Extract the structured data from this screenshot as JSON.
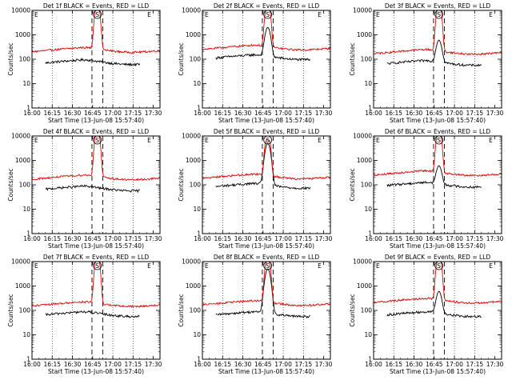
{
  "figure": {
    "ylabel": "Counts/sec",
    "xlabel": "Start Time (13-Jun-08 15:57:40)",
    "yticks": [
      "1",
      "10",
      "100",
      "1000",
      "10000"
    ],
    "xticks": [
      "16:00",
      "16:15",
      "16:30",
      "16:45",
      "17:00",
      "17:15",
      "17:30"
    ]
  },
  "colors": {
    "events": "#000000",
    "lld": "#e00000",
    "grid": "#000000"
  },
  "chart_data": [
    {
      "type": "line",
      "title": "Det 1f BLACK = Events, RED = LLD",
      "markers": [
        "S",
        "E"
      ],
      "yscale": "log",
      "ylim": [
        1,
        10000
      ],
      "xlim_min": [
        0,
        95
      ],
      "series": [
        {
          "name": "BLACK = Events",
          "baseline": 75,
          "peak": 60,
          "flare_shape": "none",
          "x_start_min": 10,
          "x_end_min": 80
        },
        {
          "name": "RED = LLD",
          "baseline": 240,
          "peak": 12000,
          "flare_shape": "broad",
          "x_start_min": 0,
          "x_end_min": 95
        }
      ]
    },
    {
      "type": "line",
      "title": "Det 2f BLACK = Events, RED = LLD",
      "markers": [
        "S",
        "E"
      ],
      "yscale": "log",
      "ylim": [
        1,
        10000
      ],
      "xlim_min": [
        0,
        95
      ],
      "series": [
        {
          "name": "BLACK = Events",
          "baseline": 120,
          "peak": 2000,
          "flare_shape": "sharp",
          "x_start_min": 10,
          "x_end_min": 80
        },
        {
          "name": "RED = LLD",
          "baseline": 300,
          "peak": 12000,
          "flare_shape": "broad",
          "x_start_min": 0,
          "x_end_min": 95
        }
      ]
    },
    {
      "type": "line",
      "title": "Det 3f BLACK = Events, RED = LLD",
      "markers": [
        "S",
        "E"
      ],
      "yscale": "log",
      "ylim": [
        1,
        10000
      ],
      "xlim_min": [
        0,
        95
      ],
      "series": [
        {
          "name": "BLACK = Events",
          "baseline": 70,
          "peak": 600,
          "flare_shape": "sharp",
          "x_start_min": 10,
          "x_end_min": 80
        },
        {
          "name": "RED = LLD",
          "baseline": 200,
          "peak": 12000,
          "flare_shape": "broad",
          "x_start_min": 0,
          "x_end_min": 95
        }
      ]
    },
    {
      "type": "line",
      "title": "Det 4f BLACK = Events, RED = LLD",
      "markers": [
        "S",
        "E"
      ],
      "yscale": "log",
      "ylim": [
        1,
        10000
      ],
      "xlim_min": [
        0,
        95
      ],
      "series": [
        {
          "name": "BLACK = Events",
          "baseline": 70,
          "peak": 60,
          "flare_shape": "none",
          "x_start_min": 10,
          "x_end_min": 80
        },
        {
          "name": "RED = LLD",
          "baseline": 200,
          "peak": 12000,
          "flare_shape": "broad",
          "x_start_min": 0,
          "x_end_min": 95
        }
      ]
    },
    {
      "type": "line",
      "title": "Det 5f BLACK = Events, RED = LLD",
      "markers": [
        "S",
        "E"
      ],
      "yscale": "log",
      "ylim": [
        1,
        10000
      ],
      "xlim_min": [
        0,
        95
      ],
      "series": [
        {
          "name": "BLACK = Events",
          "baseline": 90,
          "peak": 5000,
          "flare_shape": "sharp",
          "x_start_min": 10,
          "x_end_min": 80
        },
        {
          "name": "RED = LLD",
          "baseline": 220,
          "peak": 7000,
          "flare_shape": "broad",
          "x_start_min": 0,
          "x_end_min": 95
        }
      ]
    },
    {
      "type": "line",
      "title": "Det 6f BLACK = Events, RED = LLD",
      "markers": [
        "S",
        "E"
      ],
      "yscale": "log",
      "ylim": [
        1,
        10000
      ],
      "xlim_min": [
        0,
        95
      ],
      "series": [
        {
          "name": "BLACK = Events",
          "baseline": 100,
          "peak": 600,
          "flare_shape": "sharp",
          "x_start_min": 10,
          "x_end_min": 80
        },
        {
          "name": "RED = LLD",
          "baseline": 300,
          "peak": 12000,
          "flare_shape": "broad",
          "x_start_min": 0,
          "x_end_min": 95
        }
      ]
    },
    {
      "type": "line",
      "title": "Det 7f BLACK = Events, RED = LLD",
      "markers": [
        "S",
        "E"
      ],
      "yscale": "log",
      "ylim": [
        1,
        10000
      ],
      "xlim_min": [
        0,
        95
      ],
      "series": [
        {
          "name": "BLACK = Events",
          "baseline": 70,
          "peak": 60,
          "flare_shape": "none",
          "x_start_min": 10,
          "x_end_min": 80
        },
        {
          "name": "RED = LLD",
          "baseline": 180,
          "peak": 12000,
          "flare_shape": "broad",
          "x_start_min": 0,
          "x_end_min": 95
        }
      ]
    },
    {
      "type": "line",
      "title": "Det 8f BLACK = Events, RED = LLD",
      "markers": [
        "S",
        "E"
      ],
      "yscale": "log",
      "ylim": [
        1,
        10000
      ],
      "xlim_min": [
        0,
        95
      ],
      "series": [
        {
          "name": "BLACK = Events",
          "baseline": 70,
          "peak": 5000,
          "flare_shape": "sharp",
          "x_start_min": 10,
          "x_end_min": 80
        },
        {
          "name": "RED = LLD",
          "baseline": 200,
          "peak": 10000,
          "flare_shape": "broad",
          "x_start_min": 0,
          "x_end_min": 95
        }
      ]
    },
    {
      "type": "line",
      "title": "Det 9f BLACK = Events, RED = LLD",
      "markers": [
        "S",
        "E"
      ],
      "yscale": "log",
      "ylim": [
        1,
        10000
      ],
      "xlim_min": [
        0,
        95
      ],
      "series": [
        {
          "name": "BLACK = Events",
          "baseline": 70,
          "peak": 600,
          "flare_shape": "sharp",
          "x_start_min": 10,
          "x_end_min": 80
        },
        {
          "name": "RED = LLD",
          "baseline": 250,
          "peak": 12000,
          "flare_shape": "broad",
          "x_start_min": 0,
          "x_end_min": 95
        }
      ]
    }
  ]
}
